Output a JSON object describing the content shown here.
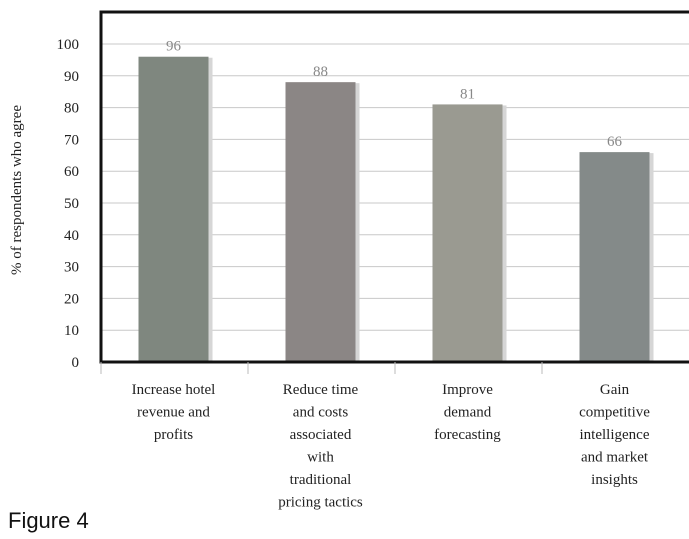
{
  "caption": "Figure 4",
  "chart_data": {
    "type": "bar",
    "title": "",
    "xlabel": "",
    "ylabel": "% of respondents who agree",
    "ylim": [
      0,
      100
    ],
    "yticks": [
      0,
      10,
      20,
      30,
      40,
      50,
      60,
      70,
      80,
      90,
      100
    ],
    "grid": true,
    "legend": "none",
    "categories": [
      [
        "Increase hotel",
        "revenue and",
        "profits"
      ],
      [
        "Reduce time",
        "and costs",
        "associated",
        "with",
        "traditional",
        "pricing tactics"
      ],
      [
        "Improve",
        "demand",
        "forecasting"
      ],
      [
        "Gain",
        "competitive",
        "intelligence",
        "and market",
        "insights"
      ]
    ],
    "values": [
      96,
      88,
      81,
      66
    ],
    "colors": [
      "#7f877f",
      "#8b8685",
      "#9a9a91",
      "#848a89"
    ]
  }
}
